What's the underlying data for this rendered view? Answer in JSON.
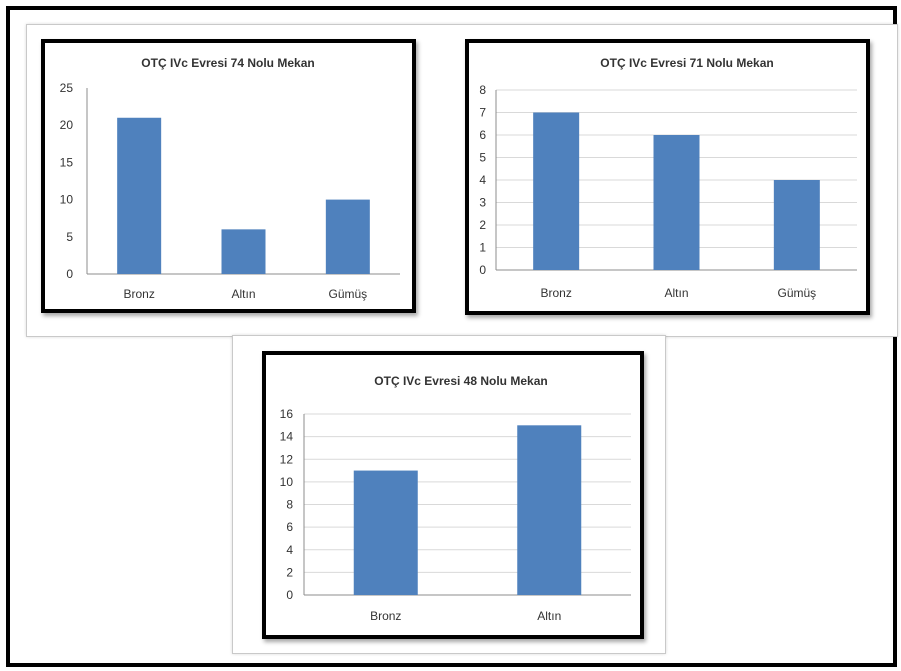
{
  "colors": {
    "bar": "#4f81bd",
    "grid": "#d9d9d9",
    "axis": "#8c8c8c",
    "text": "#333333"
  },
  "chart_data": [
    {
      "type": "bar",
      "title": "OTÇ IVc Evresi 74 Nolu Mekan",
      "categories": [
        "Bronz",
        "Altın",
        "Gümüş"
      ],
      "values": [
        21,
        6,
        10
      ],
      "ylim": [
        0,
        25
      ],
      "yticks": [
        0,
        5,
        10,
        15,
        20,
        25
      ],
      "grid": false,
      "legend": "none"
    },
    {
      "type": "bar",
      "title": "OTÇ IVc Evresi 71 Nolu Mekan",
      "categories": [
        "Bronz",
        "Altın",
        "Gümüş"
      ],
      "values": [
        7,
        6,
        4
      ],
      "ylim": [
        0,
        8
      ],
      "yticks": [
        0,
        1,
        2,
        3,
        4,
        5,
        6,
        7,
        8
      ],
      "grid": true,
      "legend": "none"
    },
    {
      "type": "bar",
      "title": "OTÇ IVc Evresi 48 Nolu Mekan",
      "categories": [
        "Bronz",
        "Altın"
      ],
      "values": [
        11,
        15
      ],
      "ylim": [
        0,
        16
      ],
      "yticks": [
        0,
        2,
        4,
        6,
        8,
        10,
        12,
        14,
        16
      ],
      "grid": true,
      "legend": "none"
    }
  ]
}
